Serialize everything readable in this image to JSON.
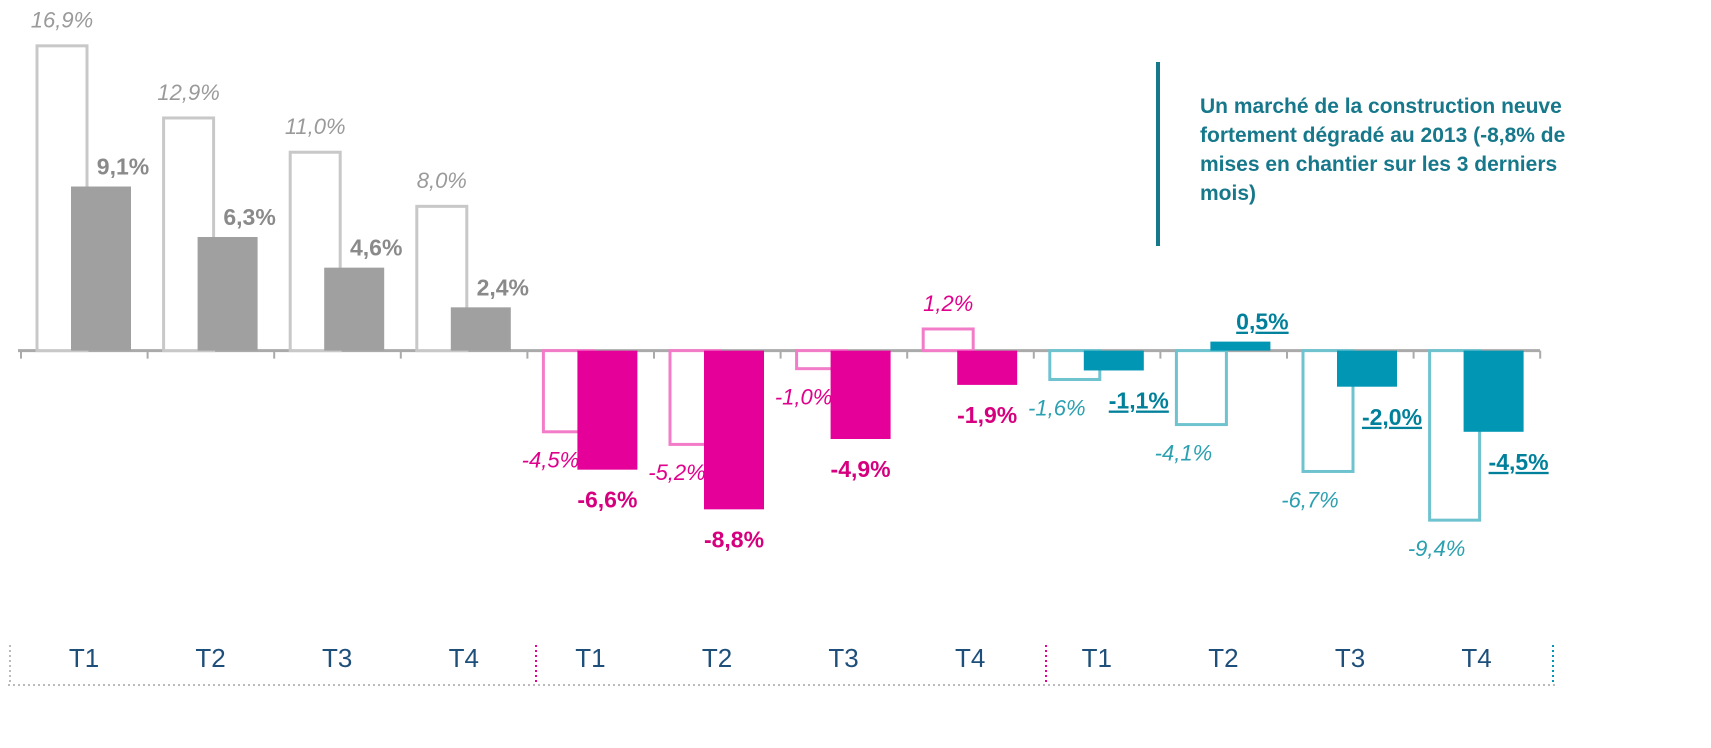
{
  "chart_data": {
    "type": "bar",
    "annotation": "Un marché de la construction neuve fortement dégradé au 2013 (-8,8% de mises en chantier sur les 3 derniers mois)",
    "categories": [
      "T1",
      "T2",
      "T3",
      "T4",
      "T1",
      "T2",
      "T3",
      "T4",
      "T1",
      "T2",
      "T3",
      "T4"
    ],
    "ylim": [
      -10.5,
      17.5
    ],
    "series": [
      {
        "style": "outline",
        "values": [
          16.9,
          12.9,
          11.0,
          8.0,
          -4.5,
          -5.2,
          -1.0,
          1.2,
          -1.6,
          -4.1,
          -6.7,
          -9.4
        ],
        "value_labels": [
          "16,9%",
          "12,9%",
          "11,0%",
          "8,0%",
          "-4,5%",
          "-5,2%",
          "-1,0%",
          "1,2%",
          "-1,6%",
          "-4,1%",
          "-6,7%",
          "-9,4%"
        ],
        "colors": [
          "#c8c8c8",
          "#c8c8c8",
          "#c8c8c8",
          "#c8c8c8",
          "#f27cc8",
          "#f27cc8",
          "#f27cc8",
          "#f27cc8",
          "#6ec3cf",
          "#6ec3cf",
          "#6ec3cf",
          "#6ec3cf"
        ],
        "label_colors": [
          "#9a9a9a",
          "#9a9a9a",
          "#9a9a9a",
          "#9a9a9a",
          "#e0008c",
          "#e0008c",
          "#e0008c",
          "#e0008c",
          "#2aa0b0",
          "#2aa0b0",
          "#2aa0b0",
          "#2aa0b0"
        ]
      },
      {
        "style": "filled",
        "values": [
          9.1,
          6.3,
          4.6,
          2.4,
          -6.6,
          -8.8,
          -4.9,
          -1.9,
          -1.1,
          0.5,
          -2.0,
          -4.5
        ],
        "value_labels": [
          "9,1%",
          "6,3%",
          "4,6%",
          "2,4%",
          "-6,6%",
          "-8,8%",
          "-4,9%",
          "-1,9%",
          "-1,1%",
          "0,5%",
          "-2,0%",
          "-4,5%"
        ],
        "colors": [
          "#a0a0a0",
          "#a0a0a0",
          "#a0a0a0",
          "#a0a0a0",
          "#e5009a",
          "#e5009a",
          "#e5009a",
          "#e5009a",
          "#0096b4",
          "#0096b4",
          "#0096b4",
          "#0096b4"
        ],
        "label_colors": [
          "#8a8a8a",
          "#8a8a8a",
          "#8a8a8a",
          "#8a8a8a",
          "#d6007f",
          "#d6007f",
          "#d6007f",
          "#d6007f",
          "#00809a",
          "#00809a",
          "#00809a",
          "#00809a"
        ]
      }
    ]
  }
}
